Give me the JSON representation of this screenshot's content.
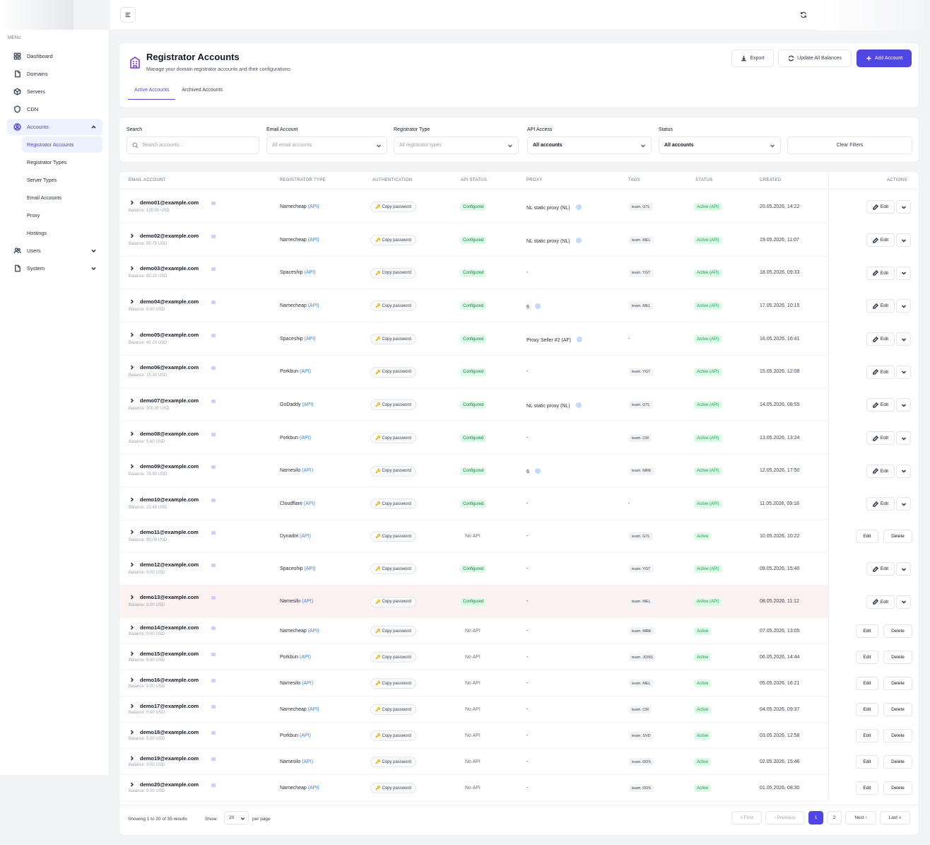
{
  "sidebar": {
    "menu_label": "MENU",
    "items": [
      {
        "label": "Dashboard",
        "icon": "grid-icon"
      },
      {
        "label": "Domains",
        "icon": "document-icon"
      },
      {
        "label": "Servers",
        "icon": "box-icon"
      },
      {
        "label": "CDN",
        "icon": "shield-icon"
      },
      {
        "label": "Accounts",
        "icon": "user-circle-icon",
        "expanded": true,
        "active": true,
        "children": [
          "Registrator Accounts",
          "Registrator Types",
          "Server Types",
          "Email Accounts",
          "Proxy",
          "Hostings"
        ]
      },
      {
        "label": "Users",
        "icon": "users-icon",
        "collapsed": true
      },
      {
        "label": "System",
        "icon": "document-icon",
        "collapsed": true
      }
    ]
  },
  "header": {
    "title": "Registrator Accounts",
    "subtitle": "Manage your domain registrator accounts and their configurations",
    "export": "Export",
    "update": "Update All Balances",
    "add": "Add Account",
    "tabs": [
      "Active Accounts",
      "Archived Accounts"
    ]
  },
  "filters": {
    "search_label": "Search",
    "search_placeholder": "Search accounts...",
    "email_label": "Email Account",
    "email_value": "All email accounts",
    "type_label": "Registrator Type",
    "type_value": "All registrator types",
    "api_label": "API Access",
    "api_value": "All accounts",
    "status_label": "Status",
    "status_value": "All accounts",
    "clear": "Clear Filters"
  },
  "columns": [
    "EMAIL ACCOUNT",
    "REGISTRATOR TYPE",
    "AUTHENTICATION",
    "API STATUS",
    "PROXY",
    "TAGS",
    "STATUS",
    "CREATED",
    "ACTIONS"
  ],
  "labels": {
    "copy_password": "Copy password",
    "api": "(API)",
    "edit": "Edit",
    "delete": "Delete"
  },
  "rows": [
    {
      "email": "demo01@example.com",
      "balance": "Balance: 120.50 USD",
      "type": "Namecheap",
      "api_status": "Configured",
      "proxy": "NL static proxy (NL)",
      "proxy_info": true,
      "tag": "team. GTL",
      "status": "Active (API)",
      "created": "20.05.2026, 14:22"
    },
    {
      "email": "demo02@example.com",
      "balance": "Balance: 85.75 USD",
      "type": "Namecheap",
      "api_status": "Configured",
      "proxy": "NL static proxy (NL)",
      "proxy_info": true,
      "tag": "team. MEL",
      "status": "Active (API)",
      "created": "19.05.2026, 11:07"
    },
    {
      "email": "demo03@example.com",
      "balance": "Balance: 60.20 USD",
      "type": "Spaceship",
      "api_status": "Configured",
      "proxy": "-",
      "proxy_info": false,
      "tag": "team. YGT",
      "status": "Active (API)",
      "created": "18.05.2026, 09:33"
    },
    {
      "email": "demo04@example.com",
      "balance": "Balance: 0.00 USD",
      "type": "Namecheap",
      "api_status": "Configured",
      "proxy": "6",
      "proxy_info": true,
      "tag": "team. MEL",
      "status": "Active (API)",
      "created": "17.05.2026, 10:15"
    },
    {
      "email": "demo05@example.com",
      "balance": "Balance: 42.10 USD",
      "type": "Spaceship",
      "api_status": "Configured",
      "proxy": "Proxy Seller #2 (AF)",
      "proxy_info": true,
      "tag": "-",
      "status": "Active (API)",
      "created": "16.05.2026, 16:41"
    },
    {
      "email": "demo06@example.com",
      "balance": "Balance: 15.30 USD",
      "type": "Porkbun",
      "api_status": "Configured",
      "proxy": "-",
      "proxy_info": false,
      "tag": "team. YGT",
      "status": "Active (API)",
      "created": "15.05.2026, 12:08"
    },
    {
      "email": "demo07@example.com",
      "balance": "Balance: 300.00 USD",
      "type": "GoDaddy",
      "api_status": "Configured",
      "proxy": "NL static proxy (NL)",
      "proxy_info": true,
      "tag": "team. GTL",
      "status": "Active (API)",
      "created": "14.05.2026, 08:55"
    },
    {
      "email": "demo08@example.com",
      "balance": "Balance: 5.60 USD",
      "type": "Porkbun",
      "api_status": "Configured",
      "proxy": "-",
      "proxy_info": false,
      "tag": "team. CM",
      "status": "Active (API)",
      "created": "13.05.2026, 13:24"
    },
    {
      "email": "demo09@example.com",
      "balance": "Balance: 78.90 USD",
      "type": "Namesilo",
      "api_status": "Configured",
      "proxy": "6",
      "proxy_info": true,
      "tag": "team. MRK",
      "status": "Active (API)",
      "created": "12.05.2026, 17:50"
    },
    {
      "email": "demo10@example.com",
      "balance": "Balance: 23.40 USD",
      "type": "Cloudflare",
      "api_status": "Configured",
      "proxy": "-",
      "proxy_info": false,
      "tag": "-",
      "status": "Active (API)",
      "created": "11.05.2026, 09:18"
    },
    {
      "email": "demo11@example.com",
      "balance": "Balance: 90.00 USD",
      "type": "Dynadot",
      "api_status": "No API",
      "proxy": "-",
      "proxy_info": false,
      "tag": "team. GTL",
      "status": "Active",
      "created": "10.05.2026, 10:22"
    },
    {
      "email": "demo12@example.com",
      "balance": "Balance: 0.00 USD",
      "type": "Spaceship",
      "api_status": "Configured",
      "proxy": "-",
      "proxy_info": false,
      "tag": "team. YGT",
      "status": "Active (API)",
      "created": "09.05.2026, 15:40"
    },
    {
      "email": "demo13@example.com",
      "balance": "Balance: 0.00 USD",
      "type": "Namesilo",
      "api_status": "Configured",
      "proxy": "-",
      "proxy_info": false,
      "tag": "team. MEL",
      "status": "Active (API)",
      "created": "08.05.2026, 11:12",
      "highlight": true
    },
    {
      "email": "demo14@example.com",
      "balance": "Balance: 0.00 USD",
      "type": "Namecheap",
      "api_status": "No API",
      "proxy": "-",
      "proxy_info": false,
      "tag": "team. MRK",
      "status": "Active",
      "created": "07.05.2026, 13:05"
    },
    {
      "email": "demo15@example.com",
      "balance": "Balance: 0.00 USD",
      "type": "Porkbun",
      "api_status": "No API",
      "proxy": "-",
      "proxy_info": false,
      "tag": "team. JONS",
      "status": "Active",
      "created": "06.05.2026, 14:44"
    },
    {
      "email": "demo16@example.com",
      "balance": "Balance: 0.00 USD",
      "type": "Namesilo",
      "api_status": "No API",
      "proxy": "-",
      "proxy_info": false,
      "tag": "team. MEL",
      "status": "Active",
      "created": "05.05.2026, 16:21"
    },
    {
      "email": "demo17@example.com",
      "balance": "Balance: 0.00 USD",
      "type": "Namecheap",
      "api_status": "No API",
      "proxy": "-",
      "proxy_info": false,
      "tag": "team. CM",
      "status": "Active",
      "created": "04.05.2026, 09:37"
    },
    {
      "email": "demo18@example.com",
      "balance": "Balance: 0.00 USD",
      "type": "Porkbun",
      "api_status": "No API",
      "proxy": "-",
      "proxy_info": false,
      "tag": "team. SVD",
      "status": "Active",
      "created": "03.05.2026, 12:58"
    },
    {
      "email": "demo19@example.com",
      "balance": "Balance: 0.00 USD",
      "type": "Namesilo",
      "api_status": "No API",
      "proxy": "-",
      "proxy_info": false,
      "tag": "team. DDS",
      "status": "Active",
      "created": "02.05.2026, 15:46"
    },
    {
      "email": "demo20@example.com",
      "balance": "Balance: 0.00 USD",
      "type": "Namecheap",
      "api_status": "No API",
      "proxy": "-",
      "proxy_info": false,
      "tag": "team. DDS",
      "status": "Active",
      "created": "01.05.2026, 08:30"
    }
  ],
  "footer": {
    "showing": "Showing 1 to 20 of 35 results",
    "show_label": "Show:",
    "per_page_value": "20",
    "per_page_suffix": "per page",
    "first": "« First",
    "previous": "‹ Previous",
    "pages": [
      "1",
      "2"
    ],
    "current_page": "1",
    "next": "Next ›",
    "last": "Last »"
  },
  "colors": {
    "accent": "#4f46e5",
    "configured_bg": "#dcfce7",
    "configured_text": "#15803d",
    "highlight_row": "#fdf2f2",
    "api_link": "#3b82f6"
  }
}
